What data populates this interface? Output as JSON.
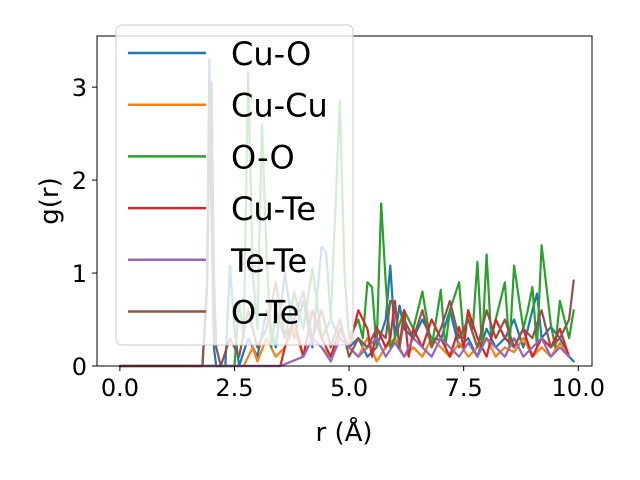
{
  "chart_data": {
    "type": "line",
    "xlabel": "r (Å)",
    "ylabel": "g(r)",
    "xlim": [
      -0.5,
      10.3
    ],
    "ylim": [
      0,
      3.55
    ],
    "x_ticks": [
      "0.0",
      "2.5",
      "5.0",
      "7.5",
      "10.0"
    ],
    "x_tick_values": [
      0,
      2.5,
      5,
      7.5,
      10
    ],
    "y_ticks": [
      "0",
      "1",
      "2",
      "3"
    ],
    "y_tick_values": [
      0,
      1,
      2,
      3
    ],
    "grid": false,
    "legend_position": "upper-left",
    "series": [
      {
        "name": "Cu-O",
        "color": "#1f77b4",
        "x": [
          0,
          0.5,
          1,
          1.5,
          1.8,
          1.9,
          1.95,
          2.0,
          2.05,
          2.1,
          2.2,
          2.3,
          2.4,
          2.5,
          2.6,
          2.8,
          3.0,
          3.2,
          3.4,
          3.6,
          3.8,
          4.0,
          4.2,
          4.4,
          4.5,
          4.6,
          4.8,
          5.0,
          5.2,
          5.4,
          5.6,
          5.8,
          5.9,
          6.0,
          6.1,
          6.2,
          6.4,
          6.6,
          6.8,
          7.0,
          7.2,
          7.4,
          7.6,
          7.8,
          8.0,
          8.2,
          8.4,
          8.6,
          8.8,
          9.0,
          9.1,
          9.2,
          9.4,
          9.6,
          9.8,
          9.9
        ],
        "y": [
          0,
          0,
          0,
          0,
          0,
          0.9,
          3.3,
          1.5,
          0.2,
          0,
          0,
          0,
          1.08,
          0.4,
          0,
          0.3,
          0.1,
          0.6,
          0.2,
          1.0,
          0.3,
          0.7,
          0.2,
          1.28,
          1.22,
          0.5,
          0.3,
          0.2,
          0.3,
          0.1,
          0.2,
          0.5,
          1.08,
          0.3,
          0.65,
          0.4,
          0.3,
          0.5,
          0.3,
          0.28,
          0.6,
          0.2,
          0.3,
          0.1,
          0.4,
          0.2,
          0.3,
          0.5,
          0.2,
          0.6,
          0.78,
          0.3,
          0.42,
          0.3,
          0.1,
          0.05
        ]
      },
      {
        "name": "Cu-Cu",
        "color": "#ff7f0e",
        "x": [
          0,
          1,
          2,
          2.5,
          2.7,
          2.8,
          2.9,
          3.0,
          3.2,
          3.4,
          3.6,
          3.8,
          4.0,
          4.2,
          4.4,
          4.6,
          4.8,
          5.0,
          5.2,
          5.4,
          5.6,
          5.8,
          6.0,
          6.2,
          6.4,
          6.6,
          6.8,
          7.0,
          7.2,
          7.4,
          7.6,
          7.8,
          8.0,
          8.2,
          8.4,
          8.6,
          8.8,
          9.0,
          9.2,
          9.4,
          9.6,
          9.8
        ],
        "y": [
          0,
          0,
          0,
          0,
          0,
          0.1,
          0.2,
          0.05,
          0.3,
          0.1,
          0.2,
          0.4,
          0.1,
          0.3,
          0.2,
          0.1,
          0.4,
          0.2,
          0.1,
          0.3,
          0.05,
          0.2,
          0.3,
          0.1,
          0.2,
          0.1,
          0.3,
          0.2,
          0.1,
          0.25,
          0.1,
          0.2,
          0.3,
          0.1,
          0.2,
          0.15,
          0.3,
          0.1,
          0.2,
          0.1,
          0.25,
          0.1
        ]
      },
      {
        "name": "O-O",
        "color": "#2ca02c",
        "x": [
          0,
          1,
          2,
          2.4,
          2.5,
          2.6,
          2.7,
          2.8,
          2.9,
          3.0,
          3.1,
          3.2,
          3.3,
          3.4,
          3.6,
          3.8,
          4.0,
          4.2,
          4.4,
          4.6,
          4.8,
          4.9,
          5.0,
          5.2,
          5.3,
          5.4,
          5.5,
          5.6,
          5.7,
          5.8,
          5.9,
          6.0,
          6.2,
          6.4,
          6.6,
          6.8,
          6.9,
          7.0,
          7.1,
          7.2,
          7.4,
          7.5,
          7.6,
          7.7,
          7.8,
          7.9,
          8.0,
          8.1,
          8.2,
          8.4,
          8.5,
          8.6,
          8.8,
          8.9,
          9.0,
          9.1,
          9.2,
          9.4,
          9.5,
          9.6,
          9.8,
          9.9
        ],
        "y": [
          0,
          0,
          0,
          0,
          0,
          0.7,
          0.3,
          3.15,
          1.0,
          0.4,
          2.6,
          1.2,
          0.2,
          0.6,
          0.3,
          0.8,
          0.4,
          1.05,
          0.3,
          0.5,
          2.85,
          1.0,
          0.3,
          0.5,
          0.3,
          0.9,
          0.85,
          0.2,
          1.75,
          0.9,
          0.2,
          0.3,
          0.6,
          0.4,
          0.8,
          0.2,
          0.5,
          0.82,
          0.2,
          0.6,
          0.9,
          0.3,
          0.6,
          0.4,
          1.12,
          0.2,
          1.2,
          0.3,
          0.5,
          0.9,
          0.2,
          1.08,
          0.4,
          0.6,
          0.85,
          0.2,
          1.3,
          0.45,
          0.2,
          0.7,
          0.3,
          0.6
        ]
      },
      {
        "name": "Cu-Te",
        "color": "#d62728",
        "x": [
          0,
          1,
          2,
          3,
          3.5,
          3.6,
          3.8,
          4.0,
          4.2,
          4.4,
          4.6,
          4.8,
          5.0,
          5.2,
          5.4,
          5.5,
          5.6,
          5.8,
          5.9,
          6.0,
          6.1,
          6.2,
          6.3,
          6.4,
          6.6,
          6.8,
          7.0,
          7.2,
          7.4,
          7.5,
          7.6,
          7.8,
          8.0,
          8.2,
          8.4,
          8.6,
          8.8,
          9.0,
          9.2,
          9.4,
          9.6,
          9.8
        ],
        "y": [
          0,
          0,
          0,
          0,
          0,
          0.2,
          0.5,
          0.1,
          0.6,
          0.3,
          0.1,
          0.4,
          0.2,
          0.6,
          0.4,
          0.1,
          0.42,
          0.2,
          0.3,
          0.7,
          0.2,
          0.6,
          0.1,
          0.4,
          0.2,
          0.5,
          0.3,
          0.1,
          0.42,
          0.2,
          0.6,
          0.3,
          0.1,
          0.5,
          0.3,
          0.2,
          0.4,
          0.1,
          0.3,
          0.2,
          0.4,
          0.1
        ]
      },
      {
        "name": "Te-Te",
        "color": "#9467bd",
        "x": [
          0,
          1,
          2,
          3,
          3.5,
          4.0,
          4.2,
          4.4,
          4.6,
          4.8,
          5.0,
          5.2,
          5.4,
          5.6,
          5.8,
          6.0,
          6.2,
          6.4,
          6.6,
          6.8,
          7.0,
          7.2,
          7.4,
          7.6,
          7.8,
          8.0,
          8.2,
          8.4,
          8.6,
          8.8,
          9.0,
          9.2,
          9.4,
          9.6,
          9.8
        ],
        "y": [
          0,
          0,
          0,
          0,
          0,
          0.1,
          0.3,
          0.2,
          0.05,
          0.3,
          0.2,
          0.1,
          0.2,
          0.3,
          0.1,
          0.25,
          0.1,
          0.3,
          0.2,
          0.1,
          0.3,
          0.2,
          0.1,
          0.25,
          0.1,
          0.3,
          0.2,
          0.1,
          0.3,
          0.1,
          0.2,
          0.3,
          0.1,
          0.2,
          0.1
        ]
      },
      {
        "name": "O-Te",
        "color": "#8c564b",
        "x": [
          0,
          1,
          1.7,
          1.8,
          1.9,
          1.95,
          2.0,
          2.05,
          2.1,
          2.2,
          2.4,
          2.6,
          2.8,
          3.0,
          3.2,
          3.4,
          3.6,
          3.8,
          4.0,
          4.2,
          4.4,
          4.6,
          4.8,
          5.0,
          5.2,
          5.4,
          5.6,
          5.8,
          5.9,
          6.0,
          6.1,
          6.2,
          6.4,
          6.6,
          6.8,
          7.0,
          7.2,
          7.4,
          7.6,
          7.8,
          8.0,
          8.2,
          8.4,
          8.6,
          8.8,
          9.0,
          9.2,
          9.4,
          9.6,
          9.8,
          9.9
        ],
        "y": [
          0,
          0,
          0,
          0,
          0.8,
          2.2,
          3.05,
          1.0,
          0.2,
          0,
          0.3,
          0.1,
          0.6,
          0.2,
          0.4,
          0.9,
          0.3,
          0.5,
          0.8,
          0.3,
          0.6,
          0.2,
          0.5,
          0.1,
          0.3,
          0.2,
          0.4,
          0.3,
          0.7,
          0.65,
          0.2,
          0.5,
          0.3,
          0.6,
          0.2,
          0.4,
          0.7,
          0.3,
          0.5,
          0.2,
          0.6,
          0.3,
          0.5,
          0.2,
          0.4,
          0.3,
          0.6,
          0.2,
          0.3,
          0.5,
          0.92
        ]
      }
    ]
  }
}
